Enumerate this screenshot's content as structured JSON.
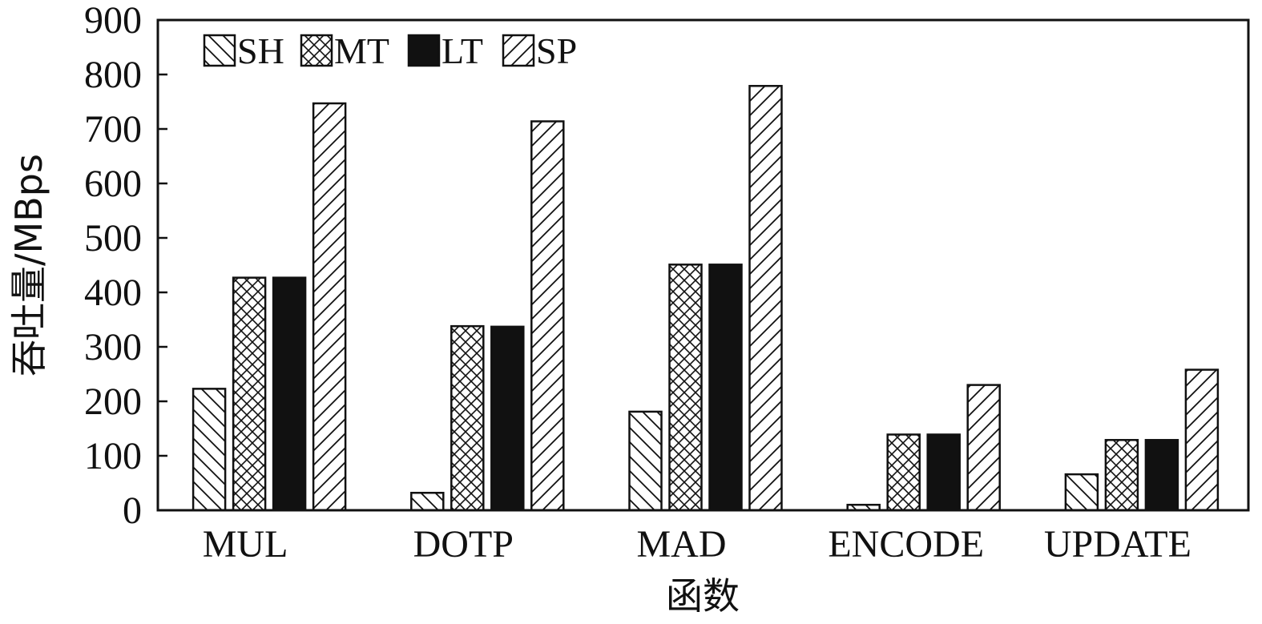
{
  "chart_data": {
    "type": "bar",
    "title": "",
    "xlabel": "函数",
    "ylabel": "吞吐量/MBps",
    "ylim": [
      0,
      900
    ],
    "yticks": [
      0,
      100,
      200,
      300,
      400,
      500,
      600,
      700,
      800,
      900
    ],
    "ytick_labels": [
      "0",
      "100",
      "200",
      "300",
      "400",
      "500",
      "600",
      "700",
      "800",
      "900"
    ],
    "categories": [
      "MUL",
      "DOTP",
      "MAD",
      "ENCODE",
      "UPDATE"
    ],
    "series": [
      {
        "name": "SH",
        "pattern": "diagonal-backslash",
        "values": [
          223,
          32,
          181,
          10,
          66
        ]
      },
      {
        "name": "MT",
        "pattern": "crosshatch",
        "values": [
          427,
          338,
          451,
          139,
          129
        ]
      },
      {
        "name": "LT",
        "pattern": "solid",
        "values": [
          427,
          337,
          451,
          139,
          129
        ]
      },
      {
        "name": "SP",
        "pattern": "diagonal-slash",
        "values": [
          747,
          714,
          779,
          230,
          258
        ]
      }
    ],
    "legend_position": "top-left",
    "grid": false
  }
}
